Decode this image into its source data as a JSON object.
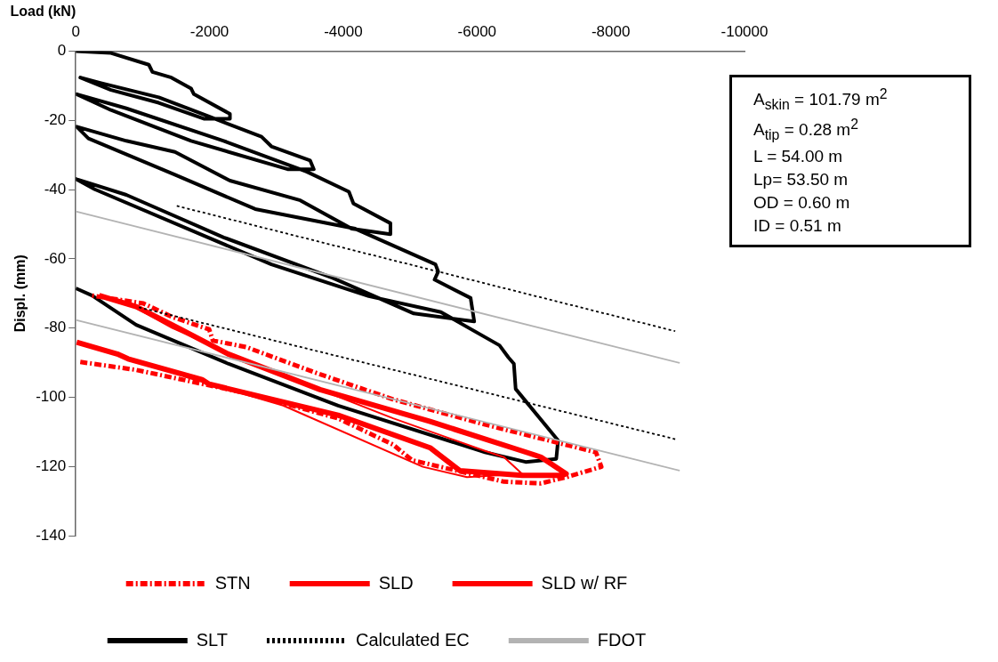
{
  "chart_data": {
    "type": "line",
    "xlabel": "Load (kN)",
    "ylabel": "Displ. (mm)",
    "xlim": [
      0,
      -10000
    ],
    "xticks": [
      0,
      -2000,
      -4000,
      -6000,
      -8000,
      -10000
    ],
    "ylim": [
      -140,
      0
    ],
    "yticks": [
      0,
      -20,
      -40,
      -60,
      -80,
      -100,
      -120,
      -140
    ],
    "grid": false,
    "legend": "bottom",
    "marker": "none",
    "series": [
      {
        "name": "STN",
        "color": "#ff0000",
        "line_style": "dashed",
        "x": [
          -67,
          -903,
          -2548,
          -3923,
          -4745,
          -5028,
          -6403,
          -6956,
          -7333,
          -7859,
          -7778,
          -6120,
          -4745,
          -3599,
          -2548,
          -2049,
          -1995,
          -1442,
          -1011,
          -243
        ],
        "values": [
          -89.8,
          -92.1,
          -98.8,
          -106.1,
          -113.7,
          -118.2,
          -124.4,
          -124.9,
          -123.1,
          -120.1,
          -115.9,
          -107.9,
          -100.6,
          -93.0,
          -85.5,
          -83.6,
          -80.4,
          -76.8,
          -72.9,
          -70.6
        ]
      },
      {
        "name": "SLD",
        "color": "#ff0000",
        "line_style": "solid",
        "x": [
          -13,
          -620,
          -782,
          -1887,
          -1995,
          -3923,
          -5298,
          -5742,
          -6673,
          -7279,
          -7333,
          -6956,
          -6673,
          -5298,
          -3653,
          -2278,
          -1442,
          -903,
          -350
        ],
        "values": [
          -84.1,
          -87.5,
          -88.9,
          -94.9,
          -96.2,
          -105.2,
          -114.6,
          -121.2,
          -122.6,
          -122.6,
          -122.1,
          -117.3,
          -115.5,
          -107.0,
          -97.8,
          -87.5,
          -79.1,
          -73.8,
          -70.6
        ]
      },
      {
        "name": "SLD w/ RF",
        "color": "#ff0000",
        "line_style": "solid",
        "x": [
          -1618,
          -3101,
          -5190,
          -5850,
          -6673,
          -6403,
          -6120,
          -4745,
          -2548,
          -1442,
          -903,
          -350
        ],
        "values": [
          -94.0,
          -102.4,
          -120.1,
          -123.1,
          -122.1,
          -117.3,
          -115.5,
          -106.1,
          -89.4,
          -80.0,
          -74.2,
          -70.6
        ]
      },
      {
        "name": "SLT",
        "color": "#000000",
        "line_style": "solid",
        "x": [
          0,
          -526,
          -1092,
          -1146,
          -1429,
          -1725,
          -1766,
          -2305,
          -2305,
          -1914,
          -1240,
          -526,
          -67,
          -377,
          -1240,
          -2009,
          -2777,
          -2925,
          -3505,
          -3559,
          -3168,
          -1725,
          -526,
          -13,
          -755,
          -2211,
          -3451,
          -4084,
          -4152,
          -4705,
          -4705,
          -4125,
          -3357,
          -2305,
          -1483,
          -755,
          -13,
          -189,
          -1483,
          -2683,
          -4179,
          -5379,
          -5419,
          -5365,
          -5904,
          -5958,
          -5055,
          -3842,
          -2211,
          -755,
          0,
          -283,
          -2925,
          -4381,
          -5460,
          -6336,
          -6470,
          -6551,
          -6578,
          -7212,
          -7185,
          -6727,
          -6120,
          -3923,
          -2278,
          -903,
          -243,
          0
        ],
        "values": [
          0,
          -0.5,
          -3.9,
          -6.0,
          -7.6,
          -10.8,
          -12.4,
          -18.1,
          -19.5,
          -19.5,
          -14.9,
          -11.2,
          -7.6,
          -9.2,
          -13.3,
          -19.0,
          -24.7,
          -27.5,
          -31.6,
          -34.1,
          -34.1,
          -25.9,
          -17.0,
          -12.4,
          -16.5,
          -25.9,
          -34.8,
          -40.6,
          -44.0,
          -49.7,
          -52.9,
          -51.3,
          -43.1,
          -37.4,
          -29.1,
          -25.9,
          -21.8,
          -25.2,
          -35.7,
          -45.6,
          -51.3,
          -61.6,
          -63.7,
          -66.0,
          -71.3,
          -78.1,
          -75.8,
          -65.5,
          -53.8,
          -41.5,
          -36.9,
          -39.9,
          -61.6,
          -70.8,
          -75.4,
          -85.0,
          -88.5,
          -90.3,
          -97.6,
          -112.5,
          -117.8,
          -118.7,
          -115.9,
          -102.4,
          -90.3,
          -79.1,
          -70.6,
          -68.5
        ]
      },
      {
        "name": "Calculated EC",
        "color": "#000000",
        "line_style": "dotted",
        "x": [
          -1510,
          -8964
        ],
        "values": [
          -44.7,
          -80.9
        ]
      },
      {
        "color": "#000000",
        "line_style": "dotted",
        "x": [
          -944,
          -8964
        ],
        "values": [
          -74.0,
          -112.1
        ]
      },
      {
        "name": "FDOT",
        "color": "#b3b3b3",
        "line_style": "solid",
        "x": [
          0,
          -9031
        ],
        "values": [
          -46.3,
          -90.1
        ]
      },
      {
        "color": "#b3b3b3",
        "line_style": "solid",
        "x": [
          0,
          -9031
        ],
        "values": [
          -77.7,
          -121.2
        ]
      }
    ],
    "annotations": [
      "A$_{skin}$ = 101.79 m$^{2}$",
      "A$_{tip}$ = 0.28 m$^{2}$",
      "L = 54.00 m",
      "Lp= 53.50 m",
      "OD = 0.60 m",
      "ID = 0.51 m"
    ]
  }
}
